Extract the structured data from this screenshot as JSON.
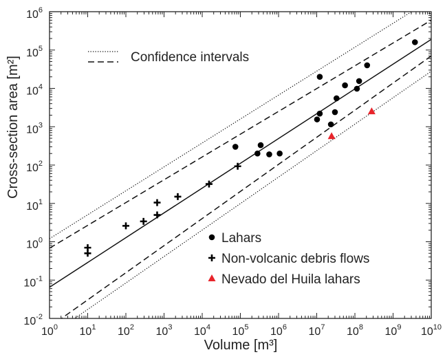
{
  "chart_data": {
    "type": "scatter",
    "x_scale": "log",
    "y_scale": "log",
    "xlim": [
      1,
      10000000000
    ],
    "ylim": [
      0.01,
      1000000
    ],
    "xlabel": "Volume [m³]",
    "ylabel": "Cross-section area [m²]",
    "x_ticks": [
      {
        "value": 1,
        "base": "10",
        "exp": "0"
      },
      {
        "value": 10,
        "base": "10",
        "exp": "1"
      },
      {
        "value": 100,
        "base": "10",
        "exp": "2"
      },
      {
        "value": 1000,
        "base": "10",
        "exp": "3"
      },
      {
        "value": 10000,
        "base": "10",
        "exp": "4"
      },
      {
        "value": 100000,
        "base": "10",
        "exp": "5"
      },
      {
        "value": 1000000,
        "base": "10",
        "exp": "6"
      },
      {
        "value": 10000000,
        "base": "10",
        "exp": "7"
      },
      {
        "value": 100000000,
        "base": "10",
        "exp": "8"
      },
      {
        "value": 1000000000,
        "base": "10",
        "exp": "9"
      },
      {
        "value": 10000000000,
        "base": "10",
        "exp": "10"
      }
    ],
    "y_ticks": [
      {
        "value": 0.01,
        "base": "10",
        "exp": "-2"
      },
      {
        "value": 0.1,
        "base": "10",
        "exp": "-1"
      },
      {
        "value": 1,
        "base": "10",
        "exp": "0"
      },
      {
        "value": 10,
        "base": "10",
        "exp": "1"
      },
      {
        "value": 100,
        "base": "10",
        "exp": "2"
      },
      {
        "value": 1000,
        "base": "10",
        "exp": "3"
      },
      {
        "value": 10000,
        "base": "10",
        "exp": "4"
      },
      {
        "value": 100000,
        "base": "10",
        "exp": "5"
      },
      {
        "value": 1000000,
        "base": "10",
        "exp": "6"
      }
    ],
    "series": [
      {
        "name": "Lahars",
        "marker": "circle",
        "color": "#000000",
        "points": [
          [
            74000,
            300
          ],
          [
            280000,
            200
          ],
          [
            340000,
            330
          ],
          [
            570000,
            190
          ],
          [
            1070000,
            200
          ],
          [
            10200000,
            1550
          ],
          [
            12000000,
            2200
          ],
          [
            12000000,
            20000
          ],
          [
            23500000,
            1150
          ],
          [
            30000000,
            2400
          ],
          [
            33000000,
            5500
          ],
          [
            55000000,
            12000
          ],
          [
            113000000,
            9800
          ],
          [
            129000000,
            15500
          ],
          [
            209000000,
            40000
          ],
          [
            3740000000,
            160000
          ]
        ]
      },
      {
        "name": "Non-volcanic debris flows",
        "marker": "plus",
        "color": "#000000",
        "points": [
          [
            10,
            0.7
          ],
          [
            10,
            0.5
          ],
          [
            100,
            2.6
          ],
          [
            290,
            3.4
          ],
          [
            660,
            10.5
          ],
          [
            660,
            5.0
          ],
          [
            2290,
            15
          ],
          [
            15100,
            32
          ],
          [
            85000,
            93
          ]
        ]
      },
      {
        "name": "Nevado del Huila lahars",
        "marker": "triangle",
        "color": "#e8242b",
        "points": [
          [
            24500000,
            560
          ],
          [
            275000000,
            2500
          ]
        ]
      }
    ],
    "fit_lines": [
      {
        "style": "solid",
        "points": [
          [
            1,
            0.065
          ],
          [
            10000000000,
            190000
          ]
        ]
      },
      {
        "style": "dashed",
        "points": [
          [
            1,
            0.68
          ],
          [
            10000000000,
            600000
          ]
        ]
      },
      {
        "style": "dashed",
        "points": [
          [
            1,
            0.006
          ],
          [
            10000000000,
            70000
          ]
        ]
      },
      {
        "style": "dotted",
        "points": [
          [
            1,
            1.2
          ],
          [
            10000000000,
            2100000
          ]
        ]
      },
      {
        "style": "dotted",
        "points": [
          [
            1,
            0.0035
          ],
          [
            10000000000,
            28000
          ]
        ]
      }
    ],
    "legend_top": {
      "position": "top-left",
      "items": [
        {
          "style": "dotted",
          "label": "Confidence intervals"
        }
      ]
    },
    "legend_bottom": {
      "position": "bottom-right",
      "items": [
        {
          "marker": "circle",
          "label": "Lahars"
        },
        {
          "marker": "plus",
          "label": "Non-volcanic debris flows"
        },
        {
          "marker": "triangle",
          "label": "Nevado del Huila lahars"
        }
      ]
    }
  }
}
